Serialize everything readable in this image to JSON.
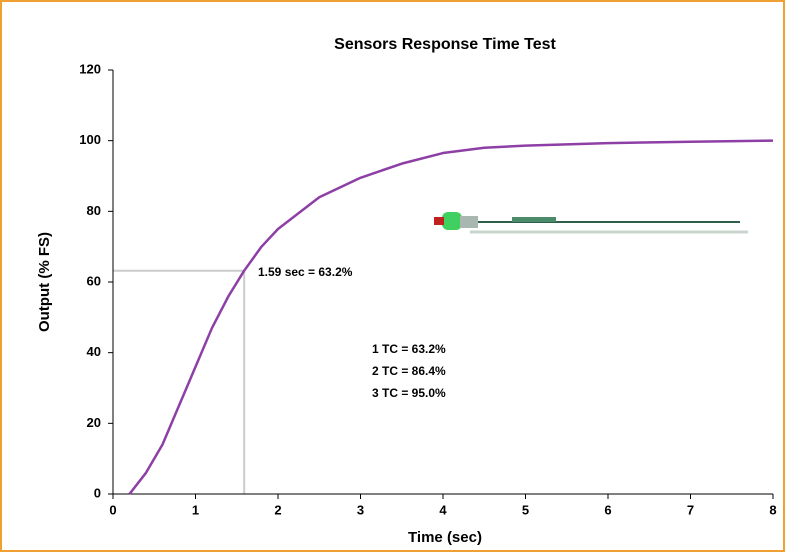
{
  "chart_data": {
    "type": "line",
    "title": "Sensors Response Time Test",
    "x_label": "Time (sec)",
    "y_label": "Output (% FS)",
    "xlim": [
      0,
      8
    ],
    "xticks": [
      0,
      1,
      2,
      3,
      4,
      5,
      6,
      7,
      8
    ],
    "ylim": [
      0,
      120
    ],
    "yticks": [
      0,
      20,
      40,
      60,
      80,
      100,
      120
    ],
    "grid": false,
    "series": [
      {
        "color": "#8e3fa6",
        "x": [
          0.2,
          0.4,
          0.6,
          0.8,
          1.0,
          1.2,
          1.4,
          1.59,
          1.8,
          2.0,
          2.5,
          3.0,
          3.5,
          4.0,
          4.5,
          5.0,
          6.0,
          7.0,
          8.0
        ],
        "values": [
          0,
          6,
          14,
          25,
          36,
          47,
          56,
          63.2,
          70,
          75,
          84,
          89.5,
          93.5,
          96.5,
          98,
          98.6,
          99.3,
          99.7,
          100
        ]
      }
    ],
    "reference_point": {
      "x": 1.59,
      "y": 63.2,
      "color": "#cccccc"
    },
    "annotations": [
      "1.59 sec = 63.2%",
      "1 TC = 63.2%",
      "2 TC = 86.4%",
      "3 TC = 95.0%"
    ]
  }
}
